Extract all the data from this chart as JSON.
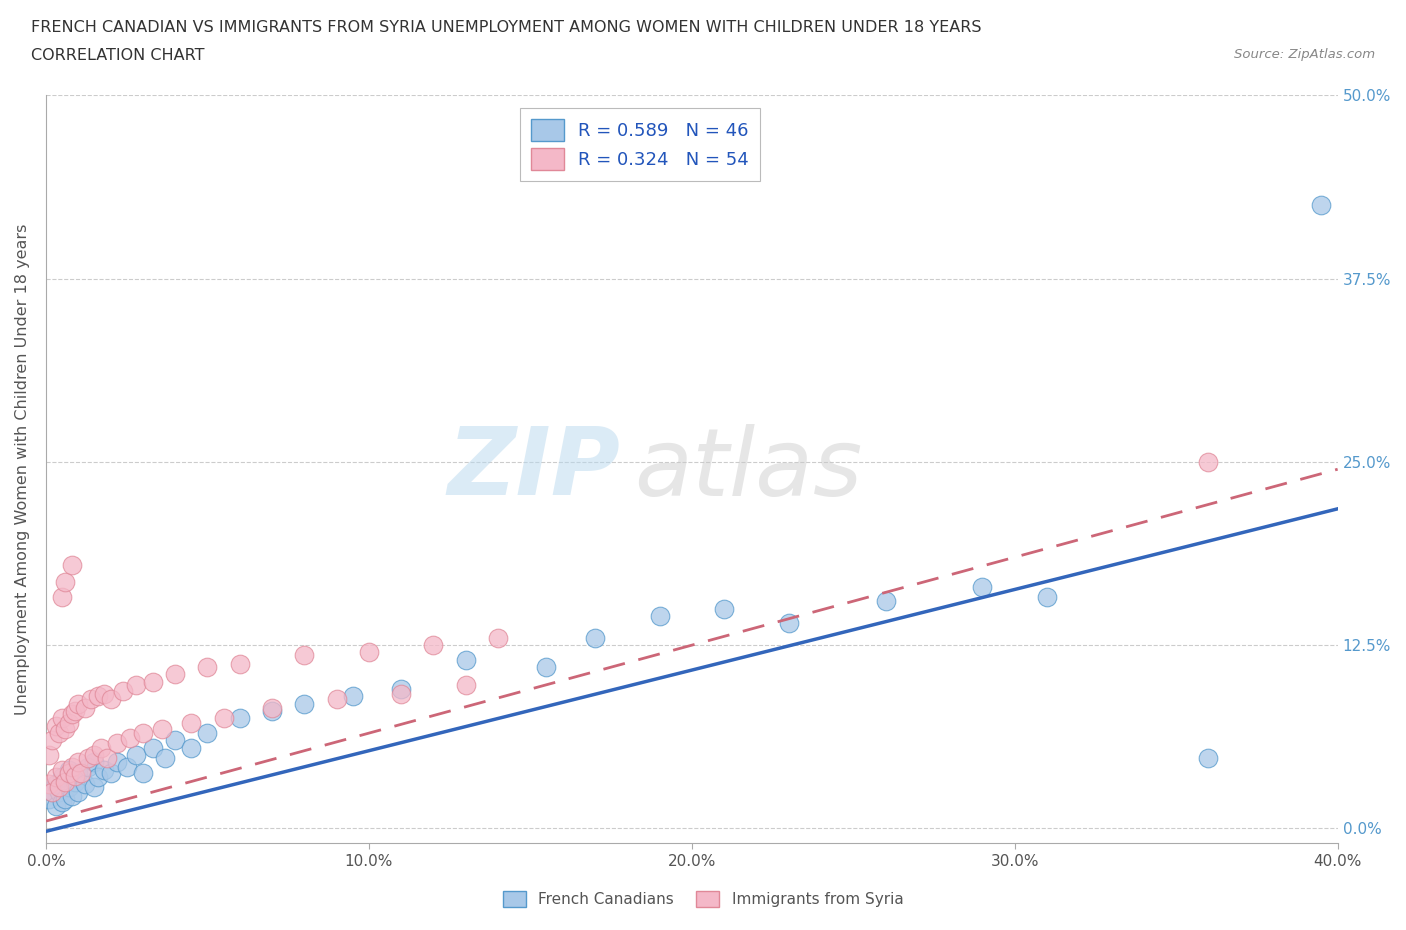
{
  "title_line1": "FRENCH CANADIAN VS IMMIGRANTS FROM SYRIA UNEMPLOYMENT AMONG WOMEN WITH CHILDREN UNDER 18 YEARS",
  "title_line2": "CORRELATION CHART",
  "source": "Source: ZipAtlas.com",
  "ylabel": "Unemployment Among Women with Children Under 18 years",
  "blue_R": 0.589,
  "blue_N": 46,
  "pink_R": 0.324,
  "pink_N": 54,
  "blue_color": "#a8c8e8",
  "blue_edge_color": "#5599cc",
  "blue_line_color": "#3366bb",
  "pink_color": "#f4b8c8",
  "pink_edge_color": "#e08898",
  "pink_line_color": "#cc6677",
  "watermark_zip": "ZIP",
  "watermark_atlas": "atlas",
  "legend_label_blue": "French Canadians",
  "legend_label_pink": "Immigrants from Syria",
  "xlim": [
    0.0,
    0.4
  ],
  "ylim": [
    -0.01,
    0.5
  ],
  "ytick_vals": [
    0.0,
    0.125,
    0.25,
    0.375,
    0.5
  ],
  "ytick_labels_right": [
    "0.0%",
    "12.5%",
    "25.0%",
    "37.5%",
    "50.0%"
  ],
  "xtick_vals": [
    0.0,
    0.1,
    0.2,
    0.3,
    0.4
  ],
  "xtick_labels": [
    "0.0%",
    "10.0%",
    "20.0%",
    "30.0%",
    "40.0%"
  ],
  "background_color": "#ffffff",
  "grid_color": "#cccccc",
  "title_color": "#333333",
  "blue_scatter_x": [
    0.001,
    0.002,
    0.003,
    0.003,
    0.004,
    0.005,
    0.005,
    0.006,
    0.007,
    0.007,
    0.008,
    0.009,
    0.01,
    0.01,
    0.012,
    0.013,
    0.015,
    0.015,
    0.016,
    0.018,
    0.02,
    0.022,
    0.025,
    0.028,
    0.03,
    0.033,
    0.037,
    0.04,
    0.045,
    0.05,
    0.06,
    0.07,
    0.08,
    0.095,
    0.11,
    0.13,
    0.155,
    0.17,
    0.19,
    0.21,
    0.23,
    0.26,
    0.29,
    0.31,
    0.36,
    0.395
  ],
  "blue_scatter_y": [
    0.02,
    0.025,
    0.015,
    0.03,
    0.025,
    0.018,
    0.035,
    0.02,
    0.028,
    0.04,
    0.022,
    0.032,
    0.025,
    0.038,
    0.03,
    0.042,
    0.028,
    0.045,
    0.035,
    0.04,
    0.038,
    0.045,
    0.042,
    0.05,
    0.038,
    0.055,
    0.048,
    0.06,
    0.055,
    0.065,
    0.075,
    0.08,
    0.085,
    0.09,
    0.095,
    0.115,
    0.11,
    0.13,
    0.145,
    0.15,
    0.14,
    0.155,
    0.165,
    0.158,
    0.048,
    0.425
  ],
  "pink_scatter_x": [
    0.001,
    0.001,
    0.002,
    0.002,
    0.003,
    0.003,
    0.004,
    0.004,
    0.005,
    0.005,
    0.006,
    0.006,
    0.007,
    0.007,
    0.008,
    0.008,
    0.009,
    0.009,
    0.01,
    0.01,
    0.011,
    0.012,
    0.013,
    0.014,
    0.015,
    0.016,
    0.017,
    0.018,
    0.019,
    0.02,
    0.022,
    0.024,
    0.026,
    0.028,
    0.03,
    0.033,
    0.036,
    0.04,
    0.045,
    0.05,
    0.055,
    0.06,
    0.07,
    0.08,
    0.09,
    0.1,
    0.11,
    0.12,
    0.13,
    0.14,
    0.005,
    0.006,
    0.36,
    0.008
  ],
  "pink_scatter_y": [
    0.03,
    0.05,
    0.025,
    0.06,
    0.035,
    0.07,
    0.028,
    0.065,
    0.04,
    0.075,
    0.032,
    0.068,
    0.038,
    0.072,
    0.042,
    0.078,
    0.036,
    0.08,
    0.045,
    0.085,
    0.038,
    0.082,
    0.048,
    0.088,
    0.05,
    0.09,
    0.055,
    0.092,
    0.048,
    0.088,
    0.058,
    0.094,
    0.062,
    0.098,
    0.065,
    0.1,
    0.068,
    0.105,
    0.072,
    0.11,
    0.075,
    0.112,
    0.082,
    0.118,
    0.088,
    0.12,
    0.092,
    0.125,
    0.098,
    0.13,
    0.158,
    0.168,
    0.25,
    0.18
  ],
  "blue_trend_x": [
    0.0,
    0.4
  ],
  "blue_trend_y": [
    -0.002,
    0.218
  ],
  "pink_trend_x": [
    0.0,
    0.4
  ],
  "pink_trend_y": [
    0.005,
    0.245
  ]
}
